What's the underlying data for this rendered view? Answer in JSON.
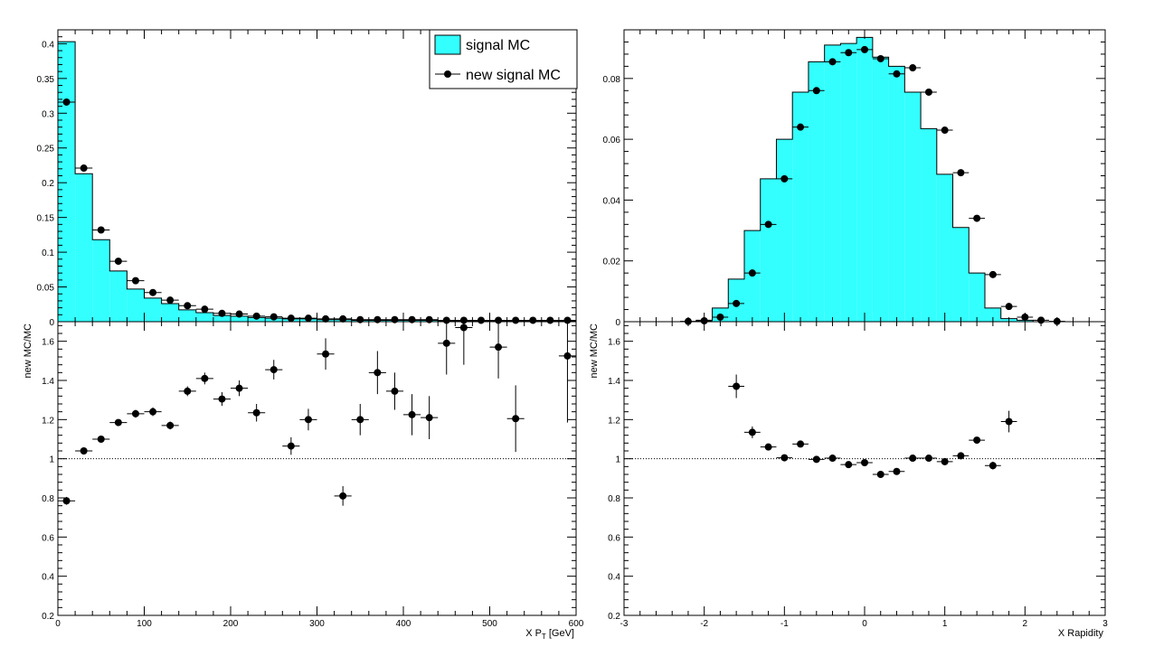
{
  "colors": {
    "hist_fill": "#33ffff",
    "hist_line": "#000000",
    "marker": "#000000"
  },
  "legend": {
    "placement": "top-right of top-left panel",
    "hist_label": "signal MC",
    "points_label": "new signal MC"
  },
  "chart_data": [
    {
      "id": "pt-dist",
      "type": "bar",
      "xlim": [
        0,
        600
      ],
      "ylim": [
        0,
        0.42
      ],
      "x_ticks": [
        0,
        100,
        200,
        300,
        400,
        500,
        600
      ],
      "y_ticks": [
        0,
        0.05,
        0.1,
        0.15,
        0.2,
        0.25,
        0.3,
        0.35,
        0.4
      ],
      "y_tick_labels": [
        "0",
        "0.05",
        "0.1",
        "0.15",
        "0.2",
        "0.25",
        "0.3",
        "0.35",
        "0.4"
      ],
      "bin_edges": [
        0,
        20,
        40,
        60,
        80,
        100,
        120,
        140,
        160,
        180,
        200,
        220,
        240,
        260,
        280,
        300,
        320,
        340,
        360,
        380,
        400,
        420,
        440,
        460,
        480,
        500,
        520,
        540,
        560,
        580,
        600
      ],
      "series": [
        {
          "name": "signal MC",
          "kind": "histogram",
          "values": [
            0.403,
            0.213,
            0.118,
            0.073,
            0.047,
            0.034,
            0.026,
            0.017,
            0.013,
            0.009,
            0.008,
            0.006,
            0.005,
            0.004,
            0.004,
            0.003,
            0.003,
            0.002,
            0.002,
            0.002,
            0.002,
            0.002,
            0.001,
            0.001,
            0.001,
            0.001,
            0.001,
            0.001,
            0.001,
            0.001
          ]
        },
        {
          "name": "new signal MC",
          "kind": "points",
          "values": [
            0.316,
            0.221,
            0.132,
            0.087,
            0.059,
            0.042,
            0.031,
            0.023,
            0.018,
            0.012,
            0.011,
            0.008,
            0.007,
            0.005,
            0.005,
            0.004,
            0.004,
            0.003,
            0.003,
            0.003,
            0.003,
            0.003,
            0.002,
            0.002,
            0.002,
            0.002,
            0.002,
            0.002,
            0.002,
            0.002
          ]
        }
      ]
    },
    {
      "id": "pt-ratio",
      "type": "scatter",
      "xlabel_main": "X P",
      "xlabel_sub": "T",
      "xlabel_suffix": " [GeV]",
      "ylabel": "new MC/MC",
      "xlim": [
        0,
        600
      ],
      "ylim": [
        0.2,
        1.7
      ],
      "x_ticks": [
        0,
        100,
        200,
        300,
        400,
        500,
        600
      ],
      "x_tick_labels": [
        "0",
        "100",
        "200",
        "300",
        "400",
        "500",
        "600"
      ],
      "y_ticks": [
        0.2,
        0.4,
        0.6,
        0.8,
        1,
        1.2,
        1.4,
        1.6
      ],
      "y_tick_labels": [
        "0.2",
        "0.4",
        "0.6",
        "0.8",
        "1",
        "1.2",
        "1.4",
        "1.6"
      ],
      "reference_line": 1,
      "bin_halfwidth": 10,
      "points": [
        {
          "x": 10,
          "y": 0.785,
          "err": 0.02
        },
        {
          "x": 30,
          "y": 1.04,
          "err": 0.012
        },
        {
          "x": 50,
          "y": 1.1,
          "err": 0.013
        },
        {
          "x": 70,
          "y": 1.185,
          "err": 0.015
        },
        {
          "x": 90,
          "y": 1.23,
          "err": 0.02
        },
        {
          "x": 110,
          "y": 1.24,
          "err": 0.022
        },
        {
          "x": 130,
          "y": 1.17,
          "err": 0.02
        },
        {
          "x": 150,
          "y": 1.345,
          "err": 0.025
        },
        {
          "x": 170,
          "y": 1.41,
          "err": 0.03
        },
        {
          "x": 190,
          "y": 1.305,
          "err": 0.035
        },
        {
          "x": 210,
          "y": 1.36,
          "err": 0.04
        },
        {
          "x": 230,
          "y": 1.235,
          "err": 0.045
        },
        {
          "x": 250,
          "y": 1.455,
          "err": 0.05
        },
        {
          "x": 270,
          "y": 1.065,
          "err": 0.045
        },
        {
          "x": 290,
          "y": 1.2,
          "err": 0.055
        },
        {
          "x": 310,
          "y": 1.535,
          "err": 0.08
        },
        {
          "x": 330,
          "y": 0.81,
          "err": 0.05
        },
        {
          "x": 350,
          "y": 1.2,
          "err": 0.08
        },
        {
          "x": 370,
          "y": 1.44,
          "err": 0.11
        },
        {
          "x": 390,
          "y": 1.345,
          "err": 0.095
        },
        {
          "x": 410,
          "y": 1.225,
          "err": 0.105
        },
        {
          "x": 430,
          "y": 1.21,
          "err": 0.11
        },
        {
          "x": 450,
          "y": 1.59,
          "err": 0.16
        },
        {
          "x": 470,
          "y": 1.67,
          "err": 0.19
        },
        {
          "x": 510,
          "y": 1.57,
          "err": 0.16
        },
        {
          "x": 530,
          "y": 1.205,
          "err": 0.17
        },
        {
          "x": 590,
          "y": 1.525,
          "err": 0.34
        }
      ]
    },
    {
      "id": "rap-dist",
      "type": "bar",
      "xlim": [
        -3,
        3
      ],
      "ylim": [
        0,
        0.096
      ],
      "x_ticks": [
        -3,
        -2,
        -1,
        0,
        1,
        2,
        3
      ],
      "y_ticks": [
        0,
        0.02,
        0.04,
        0.06,
        0.08
      ],
      "y_tick_labels": [
        "0",
        "0.02",
        "0.04",
        "0.06",
        "0.08"
      ],
      "bin_edges": [
        -2.5,
        -2.3,
        -2.1,
        -1.9,
        -1.7,
        -1.5,
        -1.3,
        -1.1,
        -0.9,
        -0.7,
        -0.5,
        -0.3,
        -0.1,
        0.1,
        0.3,
        0.5,
        0.7,
        0.9,
        1.1,
        1.3,
        1.5,
        1.7,
        1.9,
        2.1,
        2.3,
        2.5
      ],
      "series": [
        {
          "name": "signal MC",
          "kind": "histogram",
          "values": [
            0.0,
            0.0,
            0.0005,
            0.0045,
            0.014,
            0.03,
            0.047,
            0.06,
            0.0755,
            0.0855,
            0.091,
            0.0915,
            0.0935,
            0.087,
            0.084,
            0.0755,
            0.0635,
            0.0485,
            0.031,
            0.016,
            0.0045,
            0.001,
            0.0005,
            0.0,
            0.0
          ]
        },
        {
          "name": "new signal MC",
          "kind": "points",
          "values": [
            null,
            0.0001,
            0.0003,
            0.0015,
            0.006,
            0.016,
            0.032,
            0.047,
            0.064,
            0.076,
            0.0855,
            0.0885,
            0.0895,
            0.0865,
            0.0815,
            0.0835,
            0.0755,
            0.063,
            0.049,
            0.034,
            0.0155,
            0.005,
            0.0015,
            0.0005,
            0.0001
          ]
        }
      ]
    },
    {
      "id": "rap-ratio",
      "type": "scatter",
      "xlabel_main": "X Rapidity",
      "xlabel_sub": "",
      "xlabel_suffix": "",
      "ylabel": "new MC/MC",
      "xlim": [
        -3,
        3
      ],
      "ylim": [
        0.2,
        1.7
      ],
      "x_ticks": [
        -3,
        -2,
        -1,
        0,
        1,
        2,
        3
      ],
      "x_tick_labels": [
        "-3",
        "-2",
        "-1",
        "0",
        "1",
        "2",
        "3"
      ],
      "y_ticks": [
        0.2,
        0.4,
        0.6,
        0.8,
        1,
        1.2,
        1.4,
        1.6
      ],
      "y_tick_labels": [
        "0.2",
        "0.4",
        "0.6",
        "0.8",
        "1",
        "1.2",
        "1.4",
        "1.6"
      ],
      "reference_line": 1,
      "bin_halfwidth": 0.1,
      "points": [
        {
          "x": -1.6,
          "y": 1.37,
          "err": 0.06
        },
        {
          "x": -1.4,
          "y": 1.135,
          "err": 0.03
        },
        {
          "x": -1.2,
          "y": 1.06,
          "err": 0.015
        },
        {
          "x": -1.0,
          "y": 1.005,
          "err": 0.01
        },
        {
          "x": -0.8,
          "y": 1.075,
          "err": 0.008
        },
        {
          "x": -0.6,
          "y": 0.997,
          "err": 0.008
        },
        {
          "x": -0.4,
          "y": 1.003,
          "err": 0.007
        },
        {
          "x": -0.2,
          "y": 0.97,
          "err": 0.007
        },
        {
          "x": 0.0,
          "y": 0.98,
          "err": 0.007
        },
        {
          "x": 0.2,
          "y": 0.92,
          "err": 0.007
        },
        {
          "x": 0.4,
          "y": 0.935,
          "err": 0.007
        },
        {
          "x": 0.6,
          "y": 1.003,
          "err": 0.007
        },
        {
          "x": 0.8,
          "y": 1.003,
          "err": 0.008
        },
        {
          "x": 1.0,
          "y": 0.985,
          "err": 0.01
        },
        {
          "x": 1.2,
          "y": 1.015,
          "err": 0.012
        },
        {
          "x": 1.4,
          "y": 1.095,
          "err": 0.015
        },
        {
          "x": 1.6,
          "y": 0.965,
          "err": 0.02
        },
        {
          "x": 1.8,
          "y": 1.19,
          "err": 0.055
        }
      ]
    }
  ]
}
